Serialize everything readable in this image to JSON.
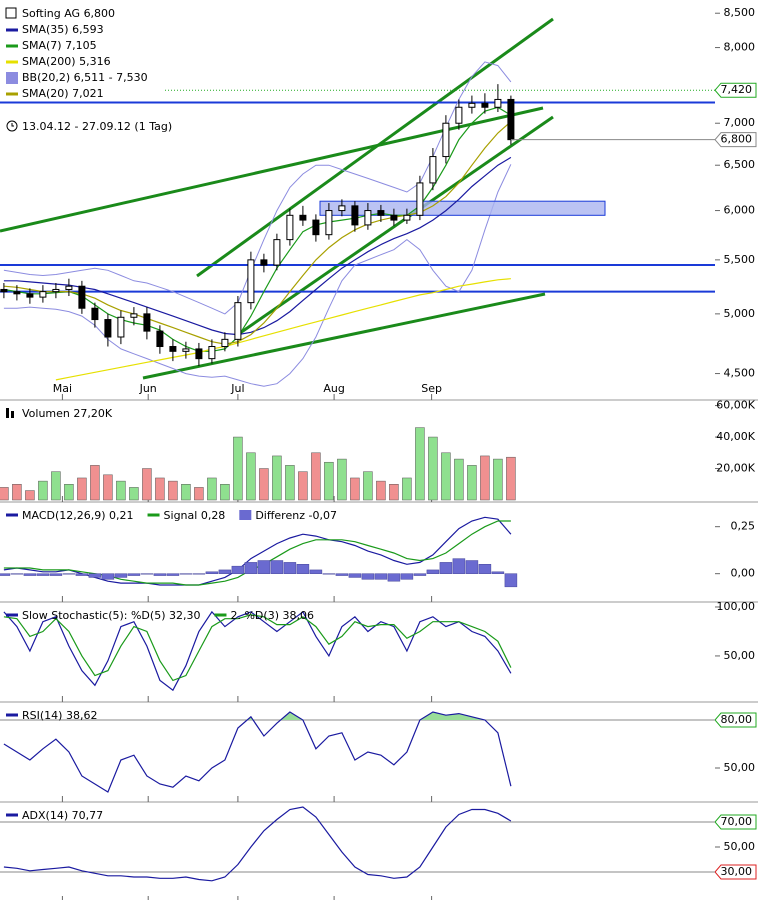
{
  "chart_data": [
    {
      "type": "candlestick",
      "title": "Softing AG 6,800",
      "subtitle": "13.04.12 - 27.09.12 (1 Tag)",
      "log": true,
      "color": "#000000",
      "up_color": "#ffffff",
      "down_color": "#000000",
      "xlim": [
        -0.3,
        54.7
      ],
      "xticks": [
        {
          "value": 4.5,
          "label": "Mai"
        },
        {
          "value": 11.1,
          "label": "Jun"
        },
        {
          "value": 18,
          "label": "Jul"
        },
        {
          "value": 25.4,
          "label": "Aug"
        },
        {
          "value": 32.9,
          "label": "Sep"
        }
      ],
      "ylim": [
        4.31,
        8.67
      ],
      "yticks": [
        {
          "value": 8.5,
          "label": "8,500"
        },
        {
          "value": 8,
          "label": "8,000"
        },
        {
          "value": 7,
          "label": "7,000"
        },
        {
          "value": 6.5,
          "label": "6,500"
        },
        {
          "value": 6,
          "label": "6,000"
        },
        {
          "value": 5.5,
          "label": "5,500"
        },
        {
          "value": 5,
          "label": "5,000"
        },
        {
          "value": 4.5,
          "label": "4,500"
        }
      ],
      "open": [
        5.22,
        5.2,
        5.18,
        5.15,
        5.2,
        5.22,
        5.25,
        5.05,
        4.95,
        4.8,
        4.97,
        5.0,
        4.85,
        4.72,
        4.68,
        4.7,
        4.62,
        4.72,
        4.78,
        5.1,
        5.5,
        5.45,
        5.7,
        5.95,
        5.9,
        5.75,
        6.0,
        6.05,
        5.85,
        6.0,
        5.95,
        5.9,
        5.95,
        6.3,
        6.6,
        7.0,
        7.2,
        7.25,
        7.2,
        7.3
      ],
      "high": [
        5.28,
        5.26,
        5.23,
        5.26,
        5.28,
        5.32,
        5.3,
        5.1,
        5.0,
        5.03,
        5.06,
        5.06,
        4.9,
        4.78,
        4.76,
        4.75,
        4.78,
        4.84,
        5.16,
        5.58,
        5.56,
        5.76,
        6.02,
        6.05,
        5.96,
        6.08,
        6.12,
        6.1,
        6.08,
        6.06,
        6.02,
        6.02,
        6.38,
        6.7,
        7.1,
        7.3,
        7.35,
        7.38,
        7.5,
        7.35
      ],
      "low": [
        5.14,
        5.12,
        5.09,
        5.1,
        5.14,
        5.16,
        5.0,
        4.88,
        4.72,
        4.74,
        4.9,
        4.78,
        4.66,
        4.6,
        4.62,
        4.56,
        4.58,
        4.68,
        4.72,
        5.04,
        5.38,
        5.4,
        5.64,
        5.84,
        5.68,
        5.7,
        5.94,
        5.78,
        5.8,
        5.88,
        5.84,
        5.86,
        5.9,
        6.22,
        6.52,
        6.92,
        7.12,
        7.12,
        7.14,
        6.74
      ],
      "close": [
        5.2,
        5.18,
        5.15,
        5.2,
        5.22,
        5.25,
        5.05,
        4.95,
        4.8,
        4.97,
        5.0,
        4.85,
        4.72,
        4.68,
        4.7,
        4.62,
        4.72,
        4.78,
        5.1,
        5.5,
        5.45,
        5.7,
        5.95,
        5.9,
        5.75,
        6.0,
        6.05,
        5.85,
        6.0,
        5.95,
        5.9,
        5.95,
        6.3,
        6.6,
        7.0,
        7.2,
        7.25,
        7.2,
        7.3,
        6.8
      ],
      "bands": {
        "name": "BB(20,2) 6,511 - 7,530",
        "color": "#8c8ce0",
        "upper": [
          5.4,
          5.38,
          5.36,
          5.35,
          5.36,
          5.38,
          5.4,
          5.42,
          5.4,
          5.35,
          5.3,
          5.28,
          5.24,
          5.2,
          5.15,
          5.1,
          5.05,
          5.0,
          5.1,
          5.4,
          5.7,
          6.0,
          6.25,
          6.4,
          6.5,
          6.5,
          6.45,
          6.4,
          6.35,
          6.3,
          6.25,
          6.2,
          6.3,
          6.6,
          6.95,
          7.3,
          7.6,
          7.8,
          7.75,
          7.53
        ],
        "lower": [
          5.05,
          5.05,
          5.06,
          5.05,
          5.04,
          5.02,
          4.98,
          4.9,
          4.78,
          4.7,
          4.66,
          4.62,
          4.58,
          4.54,
          4.5,
          4.48,
          4.47,
          4.48,
          4.45,
          4.42,
          4.4,
          4.42,
          4.5,
          4.62,
          4.8,
          5.05,
          5.3,
          5.45,
          5.5,
          5.55,
          5.6,
          5.7,
          5.6,
          5.4,
          5.25,
          5.2,
          5.4,
          5.8,
          6.2,
          6.51
        ]
      },
      "series": [
        {
          "name": "SMA(35) 6,593",
          "color": "#1a1aa0",
          "values": [
            5.3,
            5.3,
            5.29,
            5.28,
            5.27,
            5.26,
            5.24,
            5.22,
            5.18,
            5.14,
            5.1,
            5.06,
            5.02,
            4.98,
            4.94,
            4.9,
            4.86,
            4.83,
            4.82,
            4.84,
            4.88,
            4.94,
            5.02,
            5.12,
            5.22,
            5.32,
            5.42,
            5.5,
            5.58,
            5.65,
            5.71,
            5.76,
            5.82,
            5.9,
            6.0,
            6.12,
            6.26,
            6.38,
            6.5,
            6.59
          ]
        },
        {
          "name": "SMA(7) 7,105",
          "color": "#1a9a1a",
          "values": [
            5.22,
            5.2,
            5.18,
            5.18,
            5.19,
            5.2,
            5.16,
            5.08,
            5.0,
            4.95,
            4.92,
            4.9,
            4.86,
            4.78,
            4.72,
            4.68,
            4.68,
            4.7,
            4.8,
            4.98,
            5.2,
            5.42,
            5.6,
            5.78,
            5.85,
            5.88,
            5.9,
            5.92,
            5.95,
            5.97,
            5.95,
            5.95,
            6.05,
            6.25,
            6.5,
            6.8,
            7.0,
            7.15,
            7.2,
            7.1
          ]
        },
        {
          "name": "SMA(200) 5,316",
          "color": "#e6e000",
          "values": [
            null,
            null,
            null,
            null,
            4.45,
            4.47,
            4.49,
            4.51,
            4.53,
            4.55,
            4.57,
            4.59,
            4.61,
            4.63,
            4.65,
            4.67,
            4.7,
            4.72,
            4.75,
            4.78,
            4.81,
            4.84,
            4.87,
            4.9,
            4.93,
            4.96,
            4.99,
            5.02,
            5.05,
            5.08,
            5.11,
            5.14,
            5.17,
            5.19,
            5.22,
            5.25,
            5.27,
            5.29,
            5.31,
            5.32
          ]
        },
        {
          "name": "SMA(20) 7,021",
          "color": "#a8a000",
          "values": [
            5.25,
            5.24,
            5.22,
            5.2,
            5.2,
            5.2,
            5.18,
            5.14,
            5.08,
            5.03,
            5.0,
            4.96,
            4.92,
            4.88,
            4.84,
            4.8,
            4.76,
            4.74,
            4.76,
            4.82,
            4.92,
            5.05,
            5.2,
            5.35,
            5.5,
            5.62,
            5.72,
            5.8,
            5.86,
            5.9,
            5.93,
            5.95,
            5.98,
            6.05,
            6.15,
            6.3,
            6.5,
            6.7,
            6.88,
            7.02
          ]
        }
      ],
      "levels": [
        7.26,
        5.45,
        5.2
      ],
      "level_color": "#1a3ad8",
      "zone": [
        5.95,
        6.1
      ],
      "zone_color": "#aab4f0",
      "annotations": [
        {
          "value": 7.42,
          "label": "7,420",
          "color": "#22aa22"
        },
        {
          "value": 6.8,
          "label": "6,800",
          "color": "#888888"
        }
      ]
    },
    {
      "type": "bar",
      "legend": "Volumen 27,20K",
      "up_color": "#8fe08f",
      "down_color": "#f09090",
      "ylim": [
        0,
        61000
      ],
      "yticks": [
        {
          "value": 60000,
          "label": "60,00K"
        },
        {
          "value": 40000,
          "label": "40,00K"
        },
        {
          "value": 20000,
          "label": "20,00K"
        }
      ],
      "values": [
        8000,
        10000,
        6000,
        12000,
        18000,
        10000,
        14000,
        22000,
        16000,
        12000,
        8000,
        20000,
        14000,
        12000,
        10000,
        8000,
        14000,
        10000,
        40000,
        30000,
        20000,
        28000,
        22000,
        18000,
        30000,
        24000,
        26000,
        14000,
        18000,
        12000,
        10000,
        14000,
        46000,
        40000,
        30000,
        26000,
        22000,
        28000,
        26000,
        27200
      ]
    },
    {
      "type": "line",
      "ylim": [
        -0.14,
        0.36
      ],
      "yticks": [
        {
          "value": 0.25,
          "label": "0,25"
        },
        {
          "value": 0,
          "label": "0,00"
        }
      ],
      "series": [
        {
          "name": "MACD(12,26,9) 0,21",
          "color": "#1a1aa0",
          "values": [
            0.02,
            0.03,
            0.02,
            0.01,
            0.01,
            0.02,
            0.0,
            -0.02,
            -0.04,
            -0.05,
            -0.05,
            -0.05,
            -0.06,
            -0.06,
            -0.06,
            -0.06,
            -0.04,
            -0.02,
            0.02,
            0.08,
            0.12,
            0.16,
            0.19,
            0.21,
            0.2,
            0.18,
            0.17,
            0.15,
            0.12,
            0.1,
            0.07,
            0.05,
            0.06,
            0.1,
            0.17,
            0.24,
            0.28,
            0.3,
            0.29,
            0.21
          ]
        },
        {
          "name": "Signal 0,28",
          "color": "#1a9a1a",
          "values": [
            0.03,
            0.03,
            0.03,
            0.02,
            0.02,
            0.02,
            0.01,
            0.0,
            -0.01,
            -0.03,
            -0.04,
            -0.05,
            -0.05,
            -0.05,
            -0.06,
            -0.06,
            -0.05,
            -0.04,
            -0.02,
            0.02,
            0.05,
            0.09,
            0.13,
            0.16,
            0.18,
            0.18,
            0.18,
            0.17,
            0.15,
            0.13,
            0.11,
            0.08,
            0.07,
            0.08,
            0.11,
            0.16,
            0.21,
            0.25,
            0.28,
            0.28
          ]
        },
        {
          "name": "Differenz -0,07",
          "color": "#6a6ad0",
          "style": "bar",
          "values": [
            -0.01,
            0,
            -0.01,
            -0.01,
            -0.01,
            0,
            -0.01,
            -0.02,
            -0.03,
            -0.02,
            -0.01,
            0,
            -0.01,
            -0.01,
            0,
            0,
            0.01,
            0.02,
            0.04,
            0.06,
            0.07,
            0.07,
            0.06,
            0.05,
            0.02,
            0,
            -0.01,
            -0.02,
            -0.03,
            -0.03,
            -0.04,
            -0.03,
            -0.01,
            0.02,
            0.06,
            0.08,
            0.07,
            0.05,
            0.01,
            -0.07
          ]
        }
      ]
    },
    {
      "type": "line",
      "ylim": [
        5,
        101
      ],
      "yticks": [
        {
          "value": 100,
          "label": "100,00"
        },
        {
          "value": 50,
          "label": "50,00"
        }
      ],
      "series": [
        {
          "name": "Slow Stochastic(5): %D(5) 32,30",
          "color": "#1a1aa0",
          "values": [
            95,
            80,
            55,
            85,
            90,
            60,
            35,
            20,
            45,
            80,
            85,
            60,
            25,
            15,
            40,
            75,
            95,
            80,
            90,
            95,
            85,
            75,
            85,
            95,
            70,
            50,
            80,
            90,
            75,
            85,
            80,
            55,
            85,
            90,
            80,
            85,
            75,
            70,
            55,
            32.3
          ]
        },
        {
          "name": "2. %D(3) 38,06",
          "color": "#1a9a1a",
          "values": [
            90,
            88,
            70,
            75,
            88,
            75,
            50,
            30,
            35,
            60,
            80,
            75,
            45,
            25,
            30,
            55,
            80,
            88,
            88,
            92,
            90,
            82,
            82,
            90,
            80,
            62,
            70,
            85,
            80,
            82,
            82,
            68,
            75,
            85,
            85,
            85,
            80,
            75,
            65,
            38.06
          ]
        }
      ]
    },
    {
      "type": "line",
      "ylim": [
        30,
        88.75
      ],
      "yticks": [
        {
          "value": 80,
          "label": "80,00"
        },
        {
          "value": 50,
          "label": "50,00"
        }
      ],
      "tick_box_colors": [
        "#22aa22",
        null
      ],
      "levels": [
        80
      ],
      "fill_above": 80,
      "fill_color": "#99dd99",
      "series": [
        {
          "name": "RSI(14) 38,62",
          "color": "#1a1aa0",
          "values": [
            65,
            60,
            55,
            62,
            68,
            60,
            45,
            40,
            35,
            55,
            58,
            45,
            40,
            38,
            45,
            42,
            50,
            55,
            75,
            82,
            70,
            78,
            85,
            80,
            62,
            70,
            72,
            55,
            60,
            58,
            52,
            60,
            80,
            85,
            83,
            84,
            82,
            80,
            72,
            38.62
          ]
        }
      ]
    },
    {
      "type": "line",
      "ylim": [
        7.6,
        82.8
      ],
      "yticks": [
        {
          "value": 70,
          "label": "70,00"
        },
        {
          "value": 50,
          "label": "50,00"
        },
        {
          "value": 30,
          "label": "30,00"
        }
      ],
      "tick_box_colors": [
        "#22aa22",
        null,
        "#dd2222"
      ],
      "levels": [
        70,
        30
      ],
      "series": [
        {
          "name": "ADX(14) 70,77",
          "color": "#1a1aa0",
          "values": [
            34,
            33,
            31,
            32,
            33,
            34,
            31,
            29,
            27,
            27,
            26,
            26,
            25,
            25,
            26,
            24,
            23,
            26,
            36,
            50,
            63,
            72,
            80,
            82,
            74,
            60,
            46,
            34,
            28,
            27,
            25,
            26,
            34,
            50,
            66,
            76,
            80,
            80,
            77,
            70.77
          ]
        }
      ]
    }
  ]
}
